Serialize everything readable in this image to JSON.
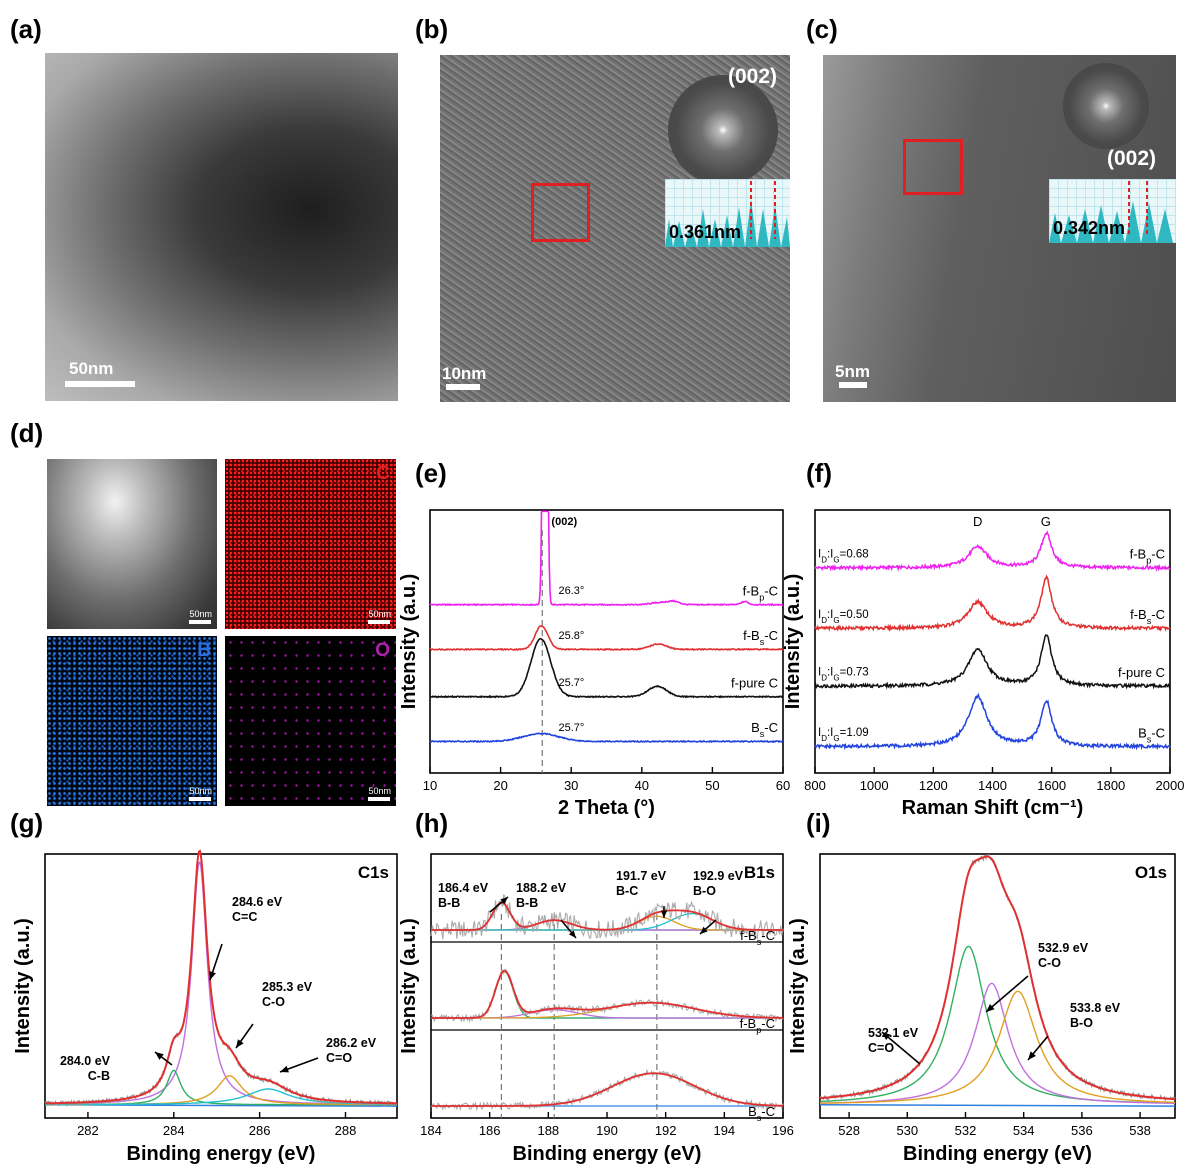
{
  "panels": {
    "a": {
      "label": "(a)",
      "scale": "50nm"
    },
    "b": {
      "label": "(b)",
      "scale": "10nm",
      "fft_label": "(002)",
      "spacing": "0.361nm"
    },
    "c": {
      "label": "(c)",
      "scale": "5nm",
      "fft_label": "(002)",
      "spacing": "0.342nm"
    },
    "d": {
      "label": "(d)",
      "maps": [
        {
          "element": "",
          "scale": "50nm",
          "color": "#ffffff"
        },
        {
          "element": "C",
          "scale": "50nm",
          "color": "#e02020"
        },
        {
          "element": "B",
          "scale": "50nm",
          "color": "#2a6fe0"
        },
        {
          "element": "O",
          "scale": "50nm",
          "color": "#b020b0"
        }
      ]
    },
    "e": {
      "label": "(e)"
    },
    "f": {
      "label": "(f)"
    },
    "g": {
      "label": "(g)"
    },
    "h": {
      "label": "(h)"
    },
    "i": {
      "label": "(i)"
    }
  },
  "chart_data": [
    {
      "id": "e",
      "type": "line",
      "xlabel": "2 Theta (°)",
      "ylabel": "Intensity (a.u.)",
      "xlim": [
        10,
        60
      ],
      "xticks": [
        10,
        20,
        30,
        40,
        50,
        60
      ],
      "peak_annotation": "(002)",
      "series": [
        {
          "name": "f-Bp-C",
          "label_main": "f-B",
          "label_sub": "p",
          "label_tail": "-C",
          "color": "#ee22ee",
          "baseline": 0.64,
          "peak_pos": 26.3,
          "peak_label": "26.3°",
          "peak_height": 2.6,
          "peak_width": 0.25,
          "extra_peaks": [
            [
              42.5,
              0.008,
              1.2
            ],
            [
              44.5,
              0.012,
              0.8
            ],
            [
              54.6,
              0.012,
              0.5
            ]
          ]
        },
        {
          "name": "f-Bs-C",
          "label_main": "f-B",
          "label_sub": "s",
          "label_tail": "-C",
          "color": "#e03030",
          "baseline": 0.47,
          "peak_pos": 25.8,
          "peak_label": "25.8°",
          "peak_height": 0.09,
          "peak_width": 0.9,
          "extra_peaks": [
            [
              42.3,
              0.02,
              1.2
            ]
          ]
        },
        {
          "name": "f-pure C",
          "label_main": "f-pure C",
          "label_sub": "",
          "label_tail": "",
          "color": "#111111",
          "baseline": 0.29,
          "peak_pos": 25.7,
          "peak_label": "25.7°",
          "peak_height": 0.22,
          "peak_width": 1.4,
          "extra_peaks": [
            [
              42.2,
              0.04,
              1.3
            ]
          ]
        },
        {
          "name": "Bs-C",
          "label_main": "B",
          "label_sub": "s",
          "label_tail": "-C",
          "color": "#2244dd",
          "baseline": 0.12,
          "peak_pos": 25.7,
          "peak_label": "25.7°",
          "peak_height": 0.03,
          "peak_width": 2.5,
          "extra_peaks": []
        }
      ]
    },
    {
      "id": "f",
      "type": "line",
      "xlabel": "Raman Shift (cm⁻¹)",
      "ylabel": "Intensity (a.u.)",
      "xlim": [
        800,
        2000
      ],
      "xticks": [
        800,
        1000,
        1200,
        1400,
        1600,
        1800,
        2000
      ],
      "band_labels": [
        {
          "text": "D",
          "x": 1350
        },
        {
          "text": "G",
          "x": 1580
        }
      ],
      "series": [
        {
          "name": "f-Bp-C",
          "label_main": "f-B",
          "label_sub": "p",
          "label_tail": "-C",
          "ratio": "=0.68",
          "color": "#ee22ee",
          "baseline": 0.78,
          "d_height": 0.08,
          "g_height": 0.13
        },
        {
          "name": "f-Bs-C",
          "label_main": "f-B",
          "label_sub": "s",
          "label_tail": "-C",
          "ratio": "=0.50",
          "color": "#e03030",
          "baseline": 0.55,
          "d_height": 0.1,
          "g_height": 0.19
        },
        {
          "name": "f-pure C",
          "label_main": "f-pure C",
          "label_sub": "",
          "label_tail": "",
          "ratio": "=0.73",
          "color": "#111111",
          "baseline": 0.33,
          "d_height": 0.14,
          "g_height": 0.19
        },
        {
          "name": "Bs-C",
          "label_main": "B",
          "label_sub": "s",
          "label_tail": "-C",
          "ratio": "=1.09",
          "color": "#2244dd",
          "baseline": 0.1,
          "d_height": 0.19,
          "g_height": 0.17
        }
      ]
    },
    {
      "id": "g",
      "type": "line",
      "title": "C1s",
      "xlabel": "Binding energy (eV)",
      "ylabel": "Intensity (a.u.)",
      "xlim": [
        281,
        289.2
      ],
      "xticks": [
        282,
        284,
        286,
        288
      ],
      "components": [
        {
          "center": 284.6,
          "height": 0.92,
          "width": 0.22,
          "color": "#c070e0",
          "label": "284.6 eV",
          "label2": "C=C"
        },
        {
          "center": 284.0,
          "height": 0.13,
          "width": 0.2,
          "color": "#30b060",
          "label": "284.0 eV",
          "label2": "C-B"
        },
        {
          "center": 285.3,
          "height": 0.11,
          "width": 0.35,
          "color": "#e0a020",
          "label": "285.3 eV",
          "label2": "C-O"
        },
        {
          "center": 286.2,
          "height": 0.06,
          "width": 0.6,
          "color": "#20c0d0",
          "label": "286.2 eV",
          "label2": "C=O"
        }
      ],
      "envelope_color": "#e03030",
      "background_color": "#3080e0"
    },
    {
      "id": "h",
      "type": "line",
      "title": "B1s",
      "xlabel": "Binding energy (eV)",
      "ylabel": "Intensity (a.u.)",
      "xlim": [
        184,
        196
      ],
      "xticks": [
        184,
        186,
        188,
        190,
        192,
        194,
        196
      ],
      "dashed_x": [
        186.4,
        188.2,
        191.7
      ],
      "annotations": [
        {
          "label": "186.4 eV",
          "label2": "B-B"
        },
        {
          "label": "188.2 eV",
          "label2": "B-B"
        },
        {
          "label": "191.7 eV",
          "label2": "B-C"
        },
        {
          "label": "192.9 eV",
          "label2": "B-O"
        }
      ],
      "series": [
        {
          "name": "f-Bs-C",
          "label_main": "f-B",
          "label_sub": "s",
          "label_tail": "-C",
          "components": [
            [
              186.4,
              0.5,
              0.3,
              "#30b060"
            ],
            [
              188.2,
              0.18,
              0.6,
              "#c070e0"
            ],
            [
              191.7,
              0.25,
              0.6,
              "#e0a020"
            ],
            [
              192.9,
              0.3,
              0.7,
              "#20c0d0"
            ]
          ]
        },
        {
          "name": "f-Bp-C",
          "label_main": "f-B",
          "label_sub": "p",
          "label_tail": "-C",
          "components": [
            [
              186.5,
              0.85,
              0.3,
              "#30b060"
            ],
            [
              188.2,
              0.15,
              0.8,
              "#c070e0"
            ],
            [
              191.5,
              0.28,
              1.5,
              "#e0a020"
            ]
          ]
        },
        {
          "name": "Bs-C",
          "label_main": "B",
          "label_sub": "s",
          "label_tail": "-C",
          "components": [
            [
              191.6,
              0.6,
              1.4,
              "#e0a020"
            ]
          ]
        }
      ]
    },
    {
      "id": "i",
      "type": "line",
      "title": "O1s",
      "xlabel": "Binding energy (eV)",
      "ylabel": "Intensity (a.u.)",
      "xlim": [
        527,
        539.2
      ],
      "xticks": [
        528,
        530,
        532,
        534,
        536,
        538
      ],
      "components": [
        {
          "center": 532.1,
          "height": 0.6,
          "width": 0.75,
          "color": "#30b060",
          "label": "532.1 eV",
          "label2": "C=O"
        },
        {
          "center": 532.9,
          "height": 0.46,
          "width": 0.7,
          "color": "#c070e0",
          "label": "532.9 eV",
          "label2": "C-O"
        },
        {
          "center": 533.8,
          "height": 0.43,
          "width": 0.8,
          "color": "#e0a020",
          "label": "533.8 eV",
          "label2": "B-O"
        }
      ],
      "envelope_color": "#e03030",
      "background_color": "#3080e0"
    }
  ]
}
